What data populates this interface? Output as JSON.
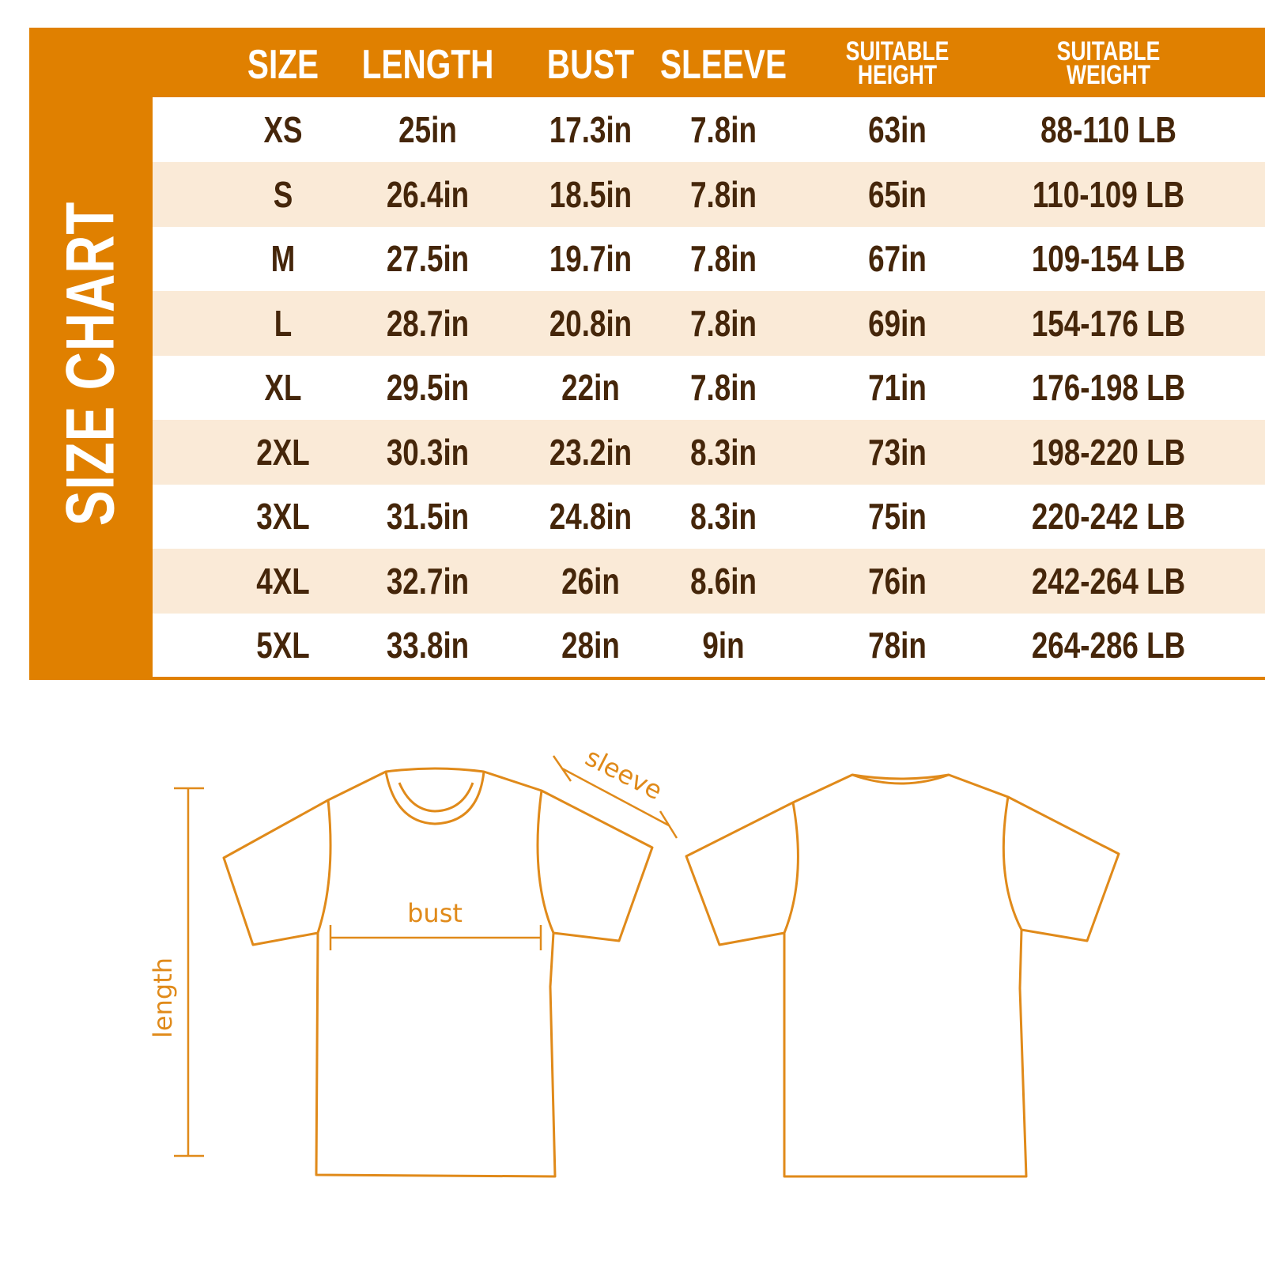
{
  "title": "SIZE CHART",
  "colors": {
    "accent": "#E08000",
    "text": "#45260A",
    "alt_row": "#FAEAD7",
    "diagram_line": "#E08A1A"
  },
  "headers": [
    "SIZE",
    "LENGTH",
    "BUST",
    "SLEEVE",
    "SUITABLE HEIGHT",
    "SUITABLE WEIGHT"
  ],
  "rows": [
    [
      "XS",
      "25in",
      "17.3in",
      "7.8in",
      "63in",
      "88-110 LB"
    ],
    [
      "S",
      "26.4in",
      "18.5in",
      "7.8in",
      "65in",
      "110-109 LB"
    ],
    [
      "M",
      "27.5in",
      "19.7in",
      "7.8in",
      "67in",
      "109-154 LB"
    ],
    [
      "L",
      "28.7in",
      "20.8in",
      "7.8in",
      "69in",
      "154-176 LB"
    ],
    [
      "XL",
      "29.5in",
      "22in",
      "7.8in",
      "71in",
      "176-198 LB"
    ],
    [
      "2XL",
      "30.3in",
      "23.2in",
      "8.3in",
      "73in",
      "198-220 LB"
    ],
    [
      "3XL",
      "31.5in",
      "24.8in",
      "8.3in",
      "75in",
      "220-242 LB"
    ],
    [
      "4XL",
      "32.7in",
      "26in",
      "8.6in",
      "76in",
      "242-264 LB"
    ],
    [
      "5XL",
      "33.8in",
      "28in",
      "9in",
      "78in",
      "264-286 LB"
    ]
  ],
  "diagram": {
    "sleeve": "sleeve",
    "bust": "bust",
    "length": "length"
  }
}
